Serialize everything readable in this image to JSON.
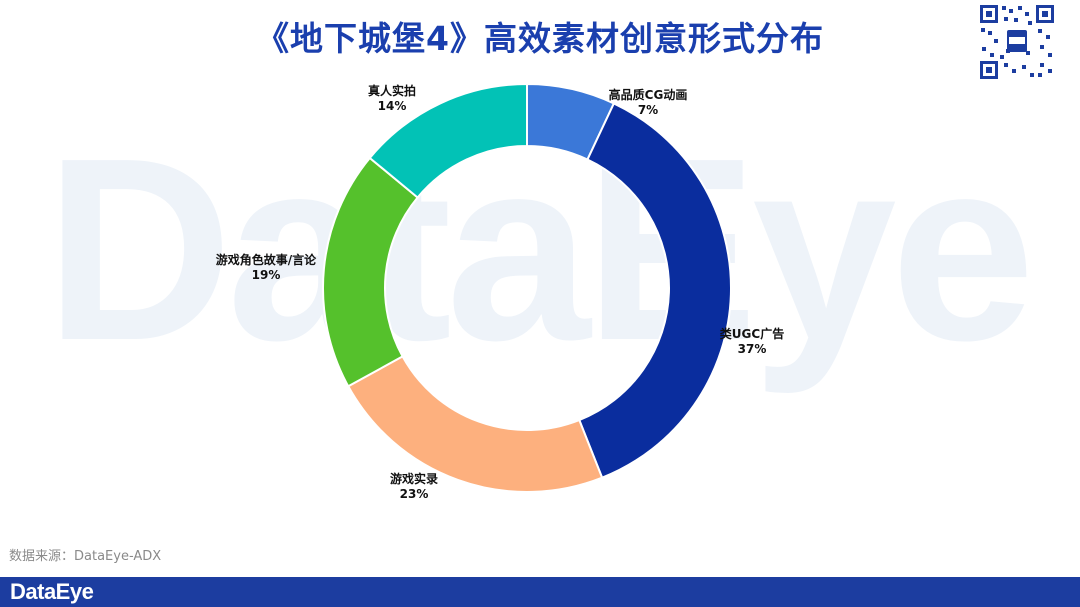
{
  "title": "《地下城堡4》高效素材创意形式分布",
  "watermark": "DataEye",
  "source": "数据来源：DataEye-ADX",
  "footer_logo": "DataEye",
  "chart_data": {
    "type": "pie",
    "donut": true,
    "slices": [
      {
        "label": "高品质CG动画",
        "value": 7,
        "percent": "7%",
        "color": "#3b78d8"
      },
      {
        "label": "类UGC广告",
        "value": 37,
        "percent": "37%",
        "color": "#0a2d9e"
      },
      {
        "label": "游戏实录",
        "value": 23,
        "percent": "23%",
        "color": "#fdb07e"
      },
      {
        "label": "游戏角色故事/言论",
        "value": 19,
        "percent": "19%",
        "color": "#55c12c"
      },
      {
        "label": "真人实拍",
        "value": 14,
        "percent": "14%",
        "color": "#02c2b6"
      }
    ]
  }
}
